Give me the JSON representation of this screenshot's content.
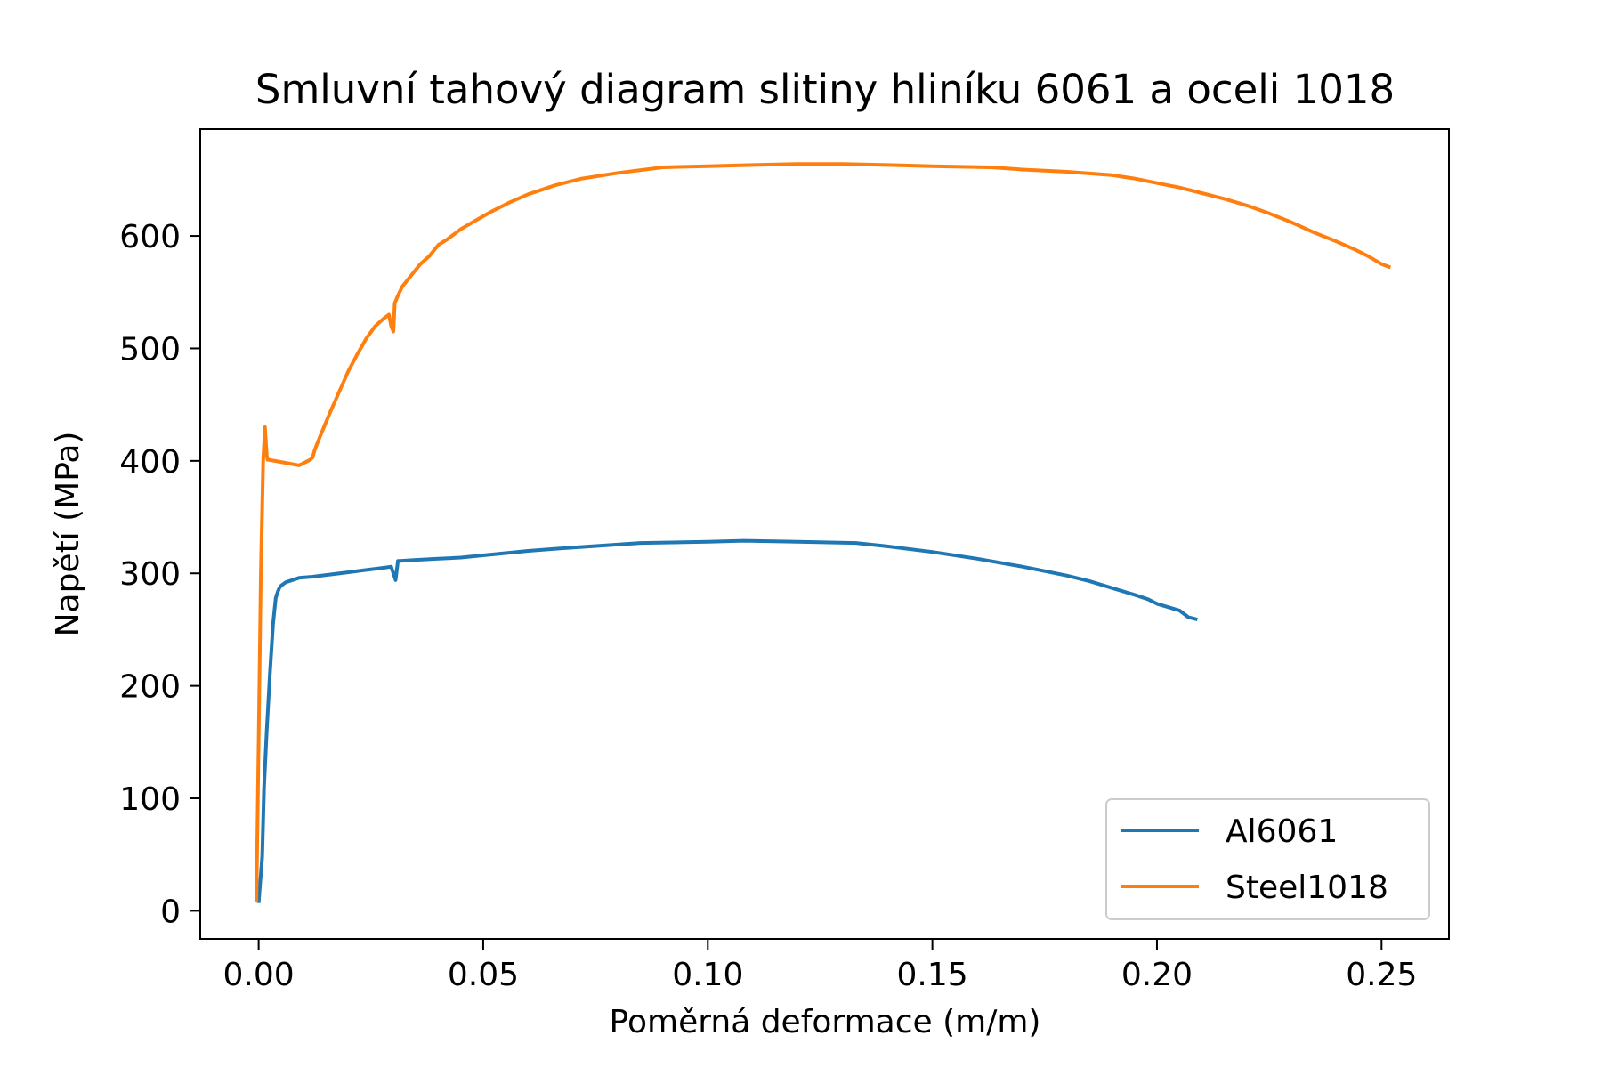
{
  "chart_data": {
    "type": "line",
    "title": "Smluvní tahový diagram  slitiny hliníku 6061 a oceli 1018",
    "xlabel": "Poměrná deformace (m/m)",
    "ylabel": "Napětí (MPa)",
    "xlim": [
      -0.013,
      0.265
    ],
    "ylim": [
      -25,
      695
    ],
    "x_ticks": [
      0.0,
      0.05,
      0.1,
      0.15,
      0.2,
      0.25
    ],
    "x_tick_labels": [
      "0.00",
      "0.05",
      "0.10",
      "0.15",
      "0.20",
      "0.25"
    ],
    "y_ticks": [
      0,
      100,
      200,
      300,
      400,
      500,
      600
    ],
    "y_tick_labels": [
      "0",
      "100",
      "200",
      "300",
      "400",
      "500",
      "600"
    ],
    "grid": false,
    "legend_position": "lower-right",
    "series": [
      {
        "name": "Al6061",
        "color": "#1f77b4",
        "x": [
          0.0,
          0.0008,
          0.0012,
          0.0018,
          0.0025,
          0.0032,
          0.0038,
          0.0042,
          0.0046,
          0.005,
          0.006,
          0.0075,
          0.009,
          0.012,
          0.016,
          0.02,
          0.024,
          0.028,
          0.0295,
          0.0305,
          0.031,
          0.0315,
          0.035,
          0.04,
          0.045,
          0.05,
          0.06,
          0.07,
          0.085,
          0.1,
          0.108,
          0.12,
          0.133,
          0.14,
          0.15,
          0.16,
          0.17,
          0.175,
          0.18,
          0.185,
          0.19,
          0.195,
          0.198,
          0.2,
          0.205,
          0.207,
          0.209
        ],
        "y": [
          7,
          48,
          110,
          160,
          210,
          255,
          278,
          283,
          287,
          289,
          292,
          294,
          296,
          297,
          299,
          301,
          303,
          305,
          306,
          294,
          311,
          311,
          312,
          313,
          314,
          316,
          320,
          323,
          327,
          328,
          329,
          328,
          327,
          324,
          319,
          313,
          306,
          302,
          298,
          293,
          287,
          281,
          277,
          273,
          267,
          261,
          259
        ]
      },
      {
        "name": "Steel1018",
        "color": "#ff7f0e",
        "x": [
          -0.0005,
          0.0,
          0.0005,
          0.001,
          0.0014,
          0.0018,
          0.002,
          0.0022,
          0.005,
          0.009,
          0.0115,
          0.012,
          0.0125,
          0.014,
          0.016,
          0.018,
          0.02,
          0.022,
          0.024,
          0.026,
          0.028,
          0.029,
          0.0295,
          0.03,
          0.0303,
          0.031,
          0.032,
          0.034,
          0.036,
          0.038,
          0.04,
          0.042,
          0.045,
          0.048,
          0.052,
          0.056,
          0.06,
          0.066,
          0.072,
          0.08,
          0.09,
          0.1,
          0.11,
          0.12,
          0.13,
          0.14,
          0.15,
          0.163,
          0.17,
          0.18,
          0.19,
          0.195,
          0.2,
          0.205,
          0.21,
          0.215,
          0.22,
          0.225,
          0.23,
          0.235,
          0.24,
          0.244,
          0.247,
          0.25,
          0.252
        ],
        "y": [
          8,
          150,
          300,
          400,
          430,
          405,
          401,
          401,
          399,
          396,
          401,
          403,
          410,
          425,
          444,
          462,
          480,
          495,
          509,
          520,
          527,
          530,
          520,
          515,
          540,
          547,
          555,
          565,
          575,
          582,
          592,
          597,
          606,
          613,
          622,
          630,
          637,
          645,
          651,
          656,
          661,
          662,
          663,
          664,
          664,
          663,
          662,
          661,
          659,
          657,
          654,
          651,
          647,
          643,
          638,
          633,
          627,
          620,
          612,
          603,
          595,
          588,
          582,
          575,
          572
        ]
      }
    ]
  }
}
